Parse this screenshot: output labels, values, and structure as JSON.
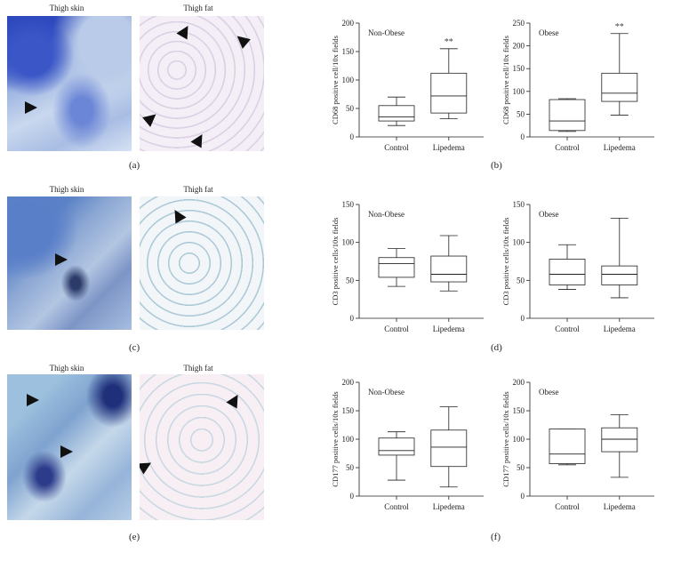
{
  "image_titles": {
    "skin": "Thigh skin",
    "fat": "Thigh fat"
  },
  "panel_labels": [
    "(a)",
    "(b)",
    "(c)",
    "(d)",
    "(e)",
    "(f)"
  ],
  "arrow_icon": "arrow-icon",
  "chart_data": [
    {
      "id": "b-left",
      "type": "box",
      "subtitle": "Non-Obese",
      "ylabel": "CD68 positive cell/10x fields",
      "ylim": [
        0,
        200
      ],
      "yticks": [
        0,
        50,
        100,
        150,
        200
      ],
      "categories": [
        "Control",
        "Lipedema"
      ],
      "boxes": [
        {
          "min": 20,
          "q1": 28,
          "median": 35,
          "q3": 55,
          "max": 70
        },
        {
          "min": 32,
          "q1": 42,
          "median": 72,
          "q3": 112,
          "max": 155
        }
      ],
      "annotations": [
        "",
        "**"
      ]
    },
    {
      "id": "b-right",
      "type": "box",
      "subtitle": "Obese",
      "ylabel": "CD68 positive cell/10x fields",
      "ylim": [
        0,
        250
      ],
      "yticks": [
        0,
        50,
        100,
        150,
        200,
        250
      ],
      "categories": [
        "Control",
        "Lipedema"
      ],
      "boxes": [
        {
          "min": 12,
          "q1": 14,
          "median": 35,
          "q3": 82,
          "max": 84
        },
        {
          "min": 48,
          "q1": 78,
          "median": 96,
          "q3": 140,
          "max": 227
        }
      ],
      "annotations": [
        "",
        "**"
      ]
    },
    {
      "id": "d-left",
      "type": "box",
      "subtitle": "Non-Obese",
      "ylabel": "CD3 positive cells/10x fields",
      "ylim": [
        0,
        150
      ],
      "yticks": [
        0,
        50,
        100,
        150
      ],
      "categories": [
        "Control",
        "Lipedema"
      ],
      "boxes": [
        {
          "min": 42,
          "q1": 54,
          "median": 72,
          "q3": 80,
          "max": 92
        },
        {
          "min": 36,
          "q1": 48,
          "median": 58,
          "q3": 82,
          "max": 109
        }
      ],
      "annotations": [
        "",
        ""
      ]
    },
    {
      "id": "d-right",
      "type": "box",
      "subtitle": "Obese",
      "ylabel": "CD3 positive cells/10x fields",
      "ylim": [
        0,
        150
      ],
      "yticks": [
        0,
        50,
        100,
        150
      ],
      "categories": [
        "Control",
        "Lipedema"
      ],
      "boxes": [
        {
          "min": 38,
          "q1": 44,
          "median": 58,
          "q3": 78,
          "max": 97
        },
        {
          "min": 27,
          "q1": 44,
          "median": 58,
          "q3": 69,
          "max": 132
        }
      ],
      "annotations": [
        "",
        ""
      ]
    },
    {
      "id": "f-left",
      "type": "box",
      "subtitle": "Non-Obese",
      "ylabel": "CD177 positive cells/10x fields",
      "ylim": [
        0,
        200
      ],
      "yticks": [
        0,
        50,
        100,
        150,
        200
      ],
      "categories": [
        "Control",
        "Lipedema"
      ],
      "boxes": [
        {
          "min": 28,
          "q1": 72,
          "median": 80,
          "q3": 102,
          "max": 113
        },
        {
          "min": 16,
          "q1": 52,
          "median": 86,
          "q3": 116,
          "max": 157
        }
      ],
      "annotations": [
        "",
        ""
      ]
    },
    {
      "id": "f-right",
      "type": "box",
      "subtitle": "Obese",
      "ylabel": "CD177 positive cells/10x fields",
      "ylim": [
        0,
        200
      ],
      "yticks": [
        0,
        50,
        100,
        150,
        200
      ],
      "categories": [
        "Control",
        "Lipedema"
      ],
      "boxes": [
        {
          "min": 55,
          "q1": 57,
          "median": 74,
          "q3": 118,
          "max": 118
        },
        {
          "min": 33,
          "q1": 78,
          "median": 100,
          "q3": 120,
          "max": 143
        }
      ],
      "annotations": [
        "",
        ""
      ]
    }
  ]
}
